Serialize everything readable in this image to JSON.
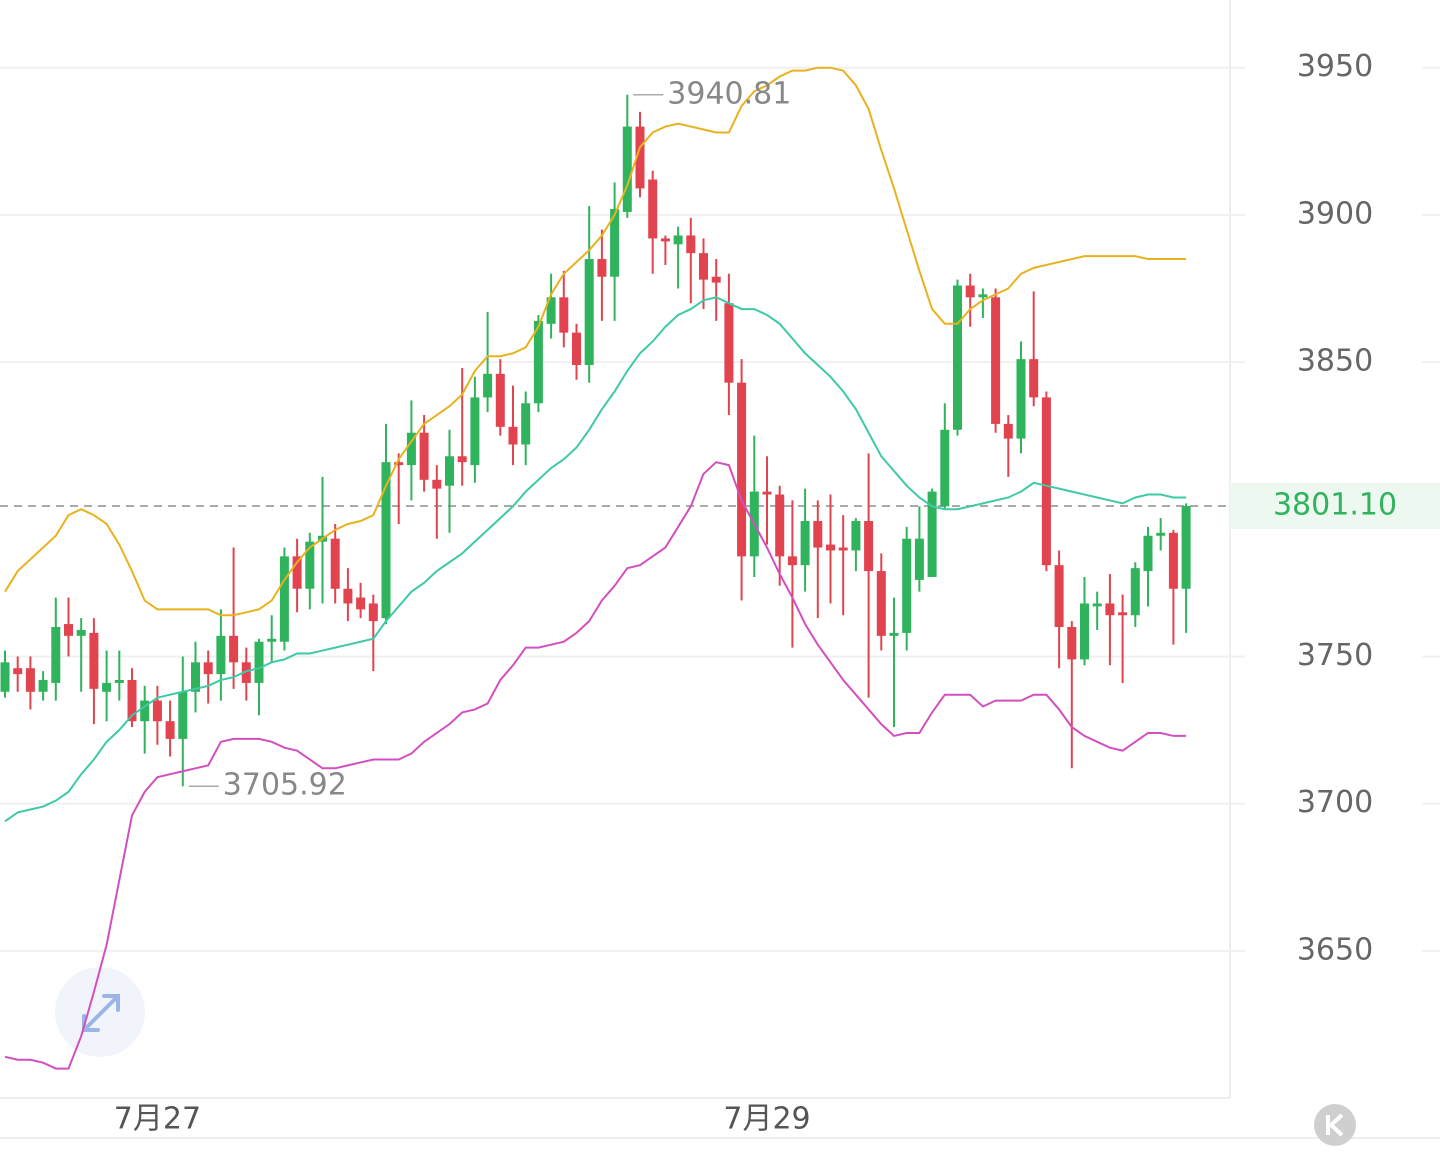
{
  "chart_data": {
    "type": "candlestick",
    "categories": [
      null,
      null,
      null,
      null,
      null,
      null,
      null,
      null,
      null,
      null,
      null,
      null,
      "7月27",
      null,
      null,
      null,
      null,
      null,
      null,
      null,
      null,
      null,
      null,
      null,
      null,
      null,
      null,
      null,
      null,
      null,
      null,
      null,
      null,
      null,
      null,
      null,
      null,
      null,
      null,
      null,
      null,
      null,
      null,
      null,
      null,
      null,
      null,
      null,
      null,
      null,
      null,
      null,
      null,
      null,
      null,
      null,
      null,
      null,
      null,
      null,
      "7月29",
      null,
      null,
      null,
      null,
      null,
      null,
      null,
      null,
      null,
      null,
      null,
      null,
      null,
      null,
      null,
      null,
      null,
      null,
      null,
      null,
      null,
      null,
      null,
      null,
      null,
      null,
      null,
      null,
      null,
      null,
      null,
      null,
      null
    ],
    "open": [
      3738,
      3746,
      3746,
      3738,
      3741,
      3761,
      3757,
      3758,
      3738,
      3741,
      3742,
      3728,
      3735,
      3728,
      3722,
      3738,
      3748,
      3744,
      3757,
      3748,
      3741,
      3755,
      3755,
      3784,
      3773,
      3789,
      3790,
      3773,
      3770,
      3768,
      3763,
      3816,
      3815,
      3826,
      3810,
      3808,
      3818,
      3815,
      3838,
      3846,
      3828,
      3822,
      3836,
      3863,
      3872,
      3860,
      3849,
      3885,
      3879,
      3901,
      3930,
      3912,
      3892,
      3890,
      3893,
      3887,
      3879,
      3870,
      3843,
      3784,
      3806,
      3805,
      3784,
      3781,
      3796,
      3788,
      3787,
      3786,
      3796,
      3779,
      3757,
      3758,
      3776,
      3777,
      3801,
      3827,
      3876,
      3872,
      3872,
      3829,
      3824,
      3851,
      3838,
      3781,
      3760,
      3749,
      3767,
      3768,
      3765,
      3764,
      3779,
      3791,
      3792,
      3773
    ],
    "high": [
      3752,
      3750,
      3750,
      3745,
      3770,
      3770,
      3763,
      3763,
      3752,
      3752,
      3746,
      3740,
      3740,
      3735,
      3750,
      3755,
      3752,
      3766,
      3787,
      3753,
      3756,
      3764,
      3787,
      3790,
      3792,
      3811,
      3795,
      3780,
      3775,
      3771,
      3829,
      3819,
      3837,
      3832,
      3815,
      3827,
      3848,
      3845,
      3867,
      3851,
      3842,
      3840,
      3866,
      3880,
      3881,
      3863,
      3903,
      3895,
      3911,
      3940.81,
      3935,
      3915,
      3893,
      3896,
      3899,
      3892,
      3885,
      3880,
      3851,
      3825,
      3818,
      3808,
      3803,
      3807,
      3803,
      3805,
      3798,
      3797,
      3819,
      3785,
      3770,
      3794,
      3801,
      3807,
      3836,
      3878,
      3880,
      3875,
      3875,
      3832,
      3857,
      3874,
      3840,
      3786,
      3762,
      3777,
      3772,
      3778,
      3771,
      3782,
      3794,
      3797,
      3793,
      3802
    ],
    "low": [
      3736,
      3738,
      3732,
      3735,
      3735,
      3750,
      3738,
      3727,
      3728,
      3735,
      3726,
      3717,
      3720,
      3716,
      3705.92,
      3731,
      3734,
      3735,
      3739,
      3735,
      3730,
      3748,
      3752,
      3765,
      3766,
      3768,
      3768,
      3762,
      3763,
      3745,
      3761,
      3795,
      3803,
      3806,
      3790,
      3792,
      3808,
      3809,
      3833,
      3825,
      3815,
      3815,
      3833,
      3858,
      3855,
      3844,
      3843,
      3864,
      3864,
      3899,
      3906,
      3880,
      3883,
      3875,
      3870,
      3868,
      3864,
      3832,
      3769,
      3777,
      3788,
      3774,
      3753,
      3772,
      3763,
      3768,
      3764,
      3779,
      3736,
      3752,
      3726,
      3752,
      3772,
      3777,
      3800,
      3825,
      3862,
      3865,
      3826,
      3811,
      3819,
      3835,
      3779,
      3746,
      3712,
      3747,
      3759,
      3747,
      3741,
      3760,
      3767,
      3786,
      3754,
      3758
    ],
    "close": [
      3748,
      3744,
      3738,
      3742,
      3760,
      3757,
      3759,
      3739,
      3741,
      3742,
      3728,
      3735,
      3728,
      3722,
      3738,
      3748,
      3744,
      3757,
      3748,
      3741,
      3755,
      3756,
      3784,
      3773,
      3789,
      3791,
      3773,
      3768,
      3766,
      3762,
      3816,
      3815,
      3826,
      3810,
      3807,
      3818,
      3816,
      3838,
      3846,
      3828,
      3822,
      3836,
      3864,
      3872,
      3860,
      3849,
      3885,
      3879,
      3902,
      3930,
      3909,
      3892,
      3891,
      3893,
      3887,
      3878,
      3877,
      3843,
      3784,
      3806,
      3805,
      3784,
      3781,
      3796,
      3787,
      3786,
      3786,
      3796,
      3779,
      3757,
      3758,
      3790,
      3790,
      3806,
      3827,
      3876,
      3872,
      3873,
      3829,
      3824,
      3851,
      3838,
      3781,
      3760,
      3749,
      3768,
      3768,
      3764,
      3764,
      3780,
      3791,
      3792,
      3773,
      3801.1
    ],
    "up_color": "#2fb35c",
    "down_color": "#e1434f",
    "bands": [
      {
        "color": "#e8b21e",
        "values": [
          3772,
          3779,
          3783,
          3787,
          3791,
          3798,
          3800,
          3798,
          3795,
          3788,
          3779,
          3769,
          3766,
          3766,
          3766,
          3766,
          3766,
          3764,
          3764,
          3765,
          3766,
          3769,
          3776,
          3782,
          3787,
          3790,
          3793,
          3795,
          3796,
          3798,
          3808,
          3817,
          3823,
          3829,
          3832,
          3835,
          3839,
          3847,
          3852,
          3852,
          3853,
          3855,
          3862,
          3873,
          3880,
          3884,
          3888,
          3893,
          3900,
          3910,
          3923,
          3928,
          3930,
          3931,
          3930,
          3929,
          3928,
          3928,
          3937,
          3942,
          3944,
          3947,
          3949,
          3949,
          3950,
          3950,
          3949,
          3944,
          3936,
          3922,
          3909,
          3895,
          3881,
          3868,
          3863,
          3863,
          3868,
          3871,
          3873,
          3875,
          3880,
          3882,
          3883,
          3884,
          3885,
          3886,
          3886,
          3886,
          3886,
          3886,
          3885,
          3885,
          3885,
          3885
        ]
      },
      {
        "color": "#3ec9a7",
        "values": [
          3694,
          3697,
          3698,
          3699,
          3701,
          3704,
          3710,
          3715,
          3721,
          3725,
          3730,
          3733,
          3736,
          3737,
          3738,
          3739,
          3740,
          3742,
          3743,
          3745,
          3746,
          3748,
          3749,
          3751,
          3751,
          3752,
          3753,
          3754,
          3755,
          3756,
          3762,
          3767,
          3772,
          3775,
          3779,
          3782,
          3785,
          3789,
          3793,
          3797,
          3801,
          3806,
          3810,
          3814,
          3817,
          3821,
          3827,
          3834,
          3840,
          3847,
          3853,
          3857,
          3862,
          3866,
          3868,
          3871,
          3872,
          3870,
          3868,
          3868,
          3866,
          3863,
          3858,
          3853,
          3849,
          3845,
          3840,
          3834,
          3826,
          3818,
          3813,
          3808,
          3804,
          3801,
          3800,
          3800,
          3801,
          3802,
          3803,
          3804,
          3806,
          3809,
          3808,
          3807,
          3806,
          3805,
          3804,
          3803,
          3802,
          3804,
          3805,
          3805,
          3804,
          3804
        ]
      },
      {
        "color": "#d24fbf",
        "values": [
          3614,
          3613,
          3613,
          3612,
          3610,
          3610,
          3621,
          3636,
          3652,
          3674,
          3696,
          3704,
          3709,
          3710,
          3711,
          3712,
          3713,
          3721,
          3722,
          3722,
          3722,
          3721,
          3719,
          3718,
          3715,
          3712,
          3712,
          3713,
          3714,
          3715,
          3715,
          3715,
          3717,
          3721,
          3724,
          3727,
          3731,
          3732,
          3734,
          3742,
          3747,
          3753,
          3753,
          3754,
          3755,
          3758,
          3762,
          3769,
          3774,
          3780,
          3781,
          3784,
          3787,
          3794,
          3801,
          3812,
          3816,
          3815,
          3803,
          3795,
          3787,
          3778,
          3770,
          3761,
          3754,
          3748,
          3742,
          3737,
          3732,
          3727,
          3723,
          3724,
          3724,
          3731,
          3737,
          3737,
          3737,
          3733,
          3735,
          3735,
          3735,
          3737,
          3737,
          3732,
          3726,
          3723,
          3721,
          3719,
          3718,
          3721,
          3724,
          3724,
          3723,
          3723
        ]
      }
    ],
    "ylim": [
      3600,
      3973
    ],
    "yticks": [
      3650,
      3700,
      3750,
      3850,
      3900,
      3950
    ],
    "grid": true,
    "max_annotation": 3940.81,
    "min_annotation": 3705.92,
    "last_price": {
      "value": 3801.1,
      "label": "3801.10"
    }
  }
}
